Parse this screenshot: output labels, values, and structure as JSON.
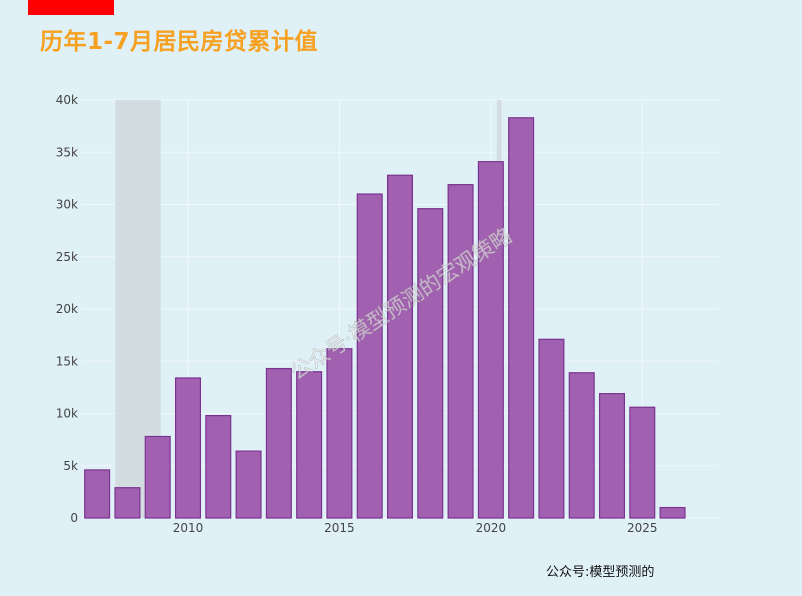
{
  "header": {
    "title": "历年1-7月居民房贷累计值"
  },
  "watermark": "公众号·模型预测的宏观策略",
  "footer": "公众号:模型预测的",
  "colors": {
    "bar_fill": "#a260b0",
    "bar_stroke": "#7a3390",
    "shade": "#d3dce0",
    "background": "#dff0f7",
    "title": "#f6a121",
    "brand_tab": "#ff0000"
  },
  "chart_data": {
    "type": "bar",
    "title": "",
    "xlabel": "",
    "ylabel": "",
    "x": [
      2007,
      2008,
      2009,
      2010,
      2011,
      2012,
      2013,
      2014,
      2015,
      2016,
      2017,
      2018,
      2019,
      2020,
      2021,
      2022,
      2023,
      2024,
      2025,
      2026
    ],
    "values": [
      4600,
      2900,
      7800,
      13400,
      9800,
      6400,
      14300,
      14000,
      16200,
      31000,
      32800,
      29600,
      31900,
      34100,
      38300,
      17100,
      13900,
      11900,
      10600,
      1000
    ],
    "xlim": [
      2006.5,
      2027.5
    ],
    "ylim": [
      0,
      40000
    ],
    "xticks": [
      2010,
      2015,
      2020,
      2025
    ],
    "xtick_labels": [
      "2010",
      "2015",
      "2020",
      "2025"
    ],
    "yticks": [
      0,
      5000,
      10000,
      15000,
      20000,
      25000,
      30000,
      35000,
      40000
    ],
    "ytick_labels": [
      "0",
      "5k",
      "10k",
      "15k",
      "20k",
      "25k",
      "30k",
      "35k",
      "40k"
    ],
    "shaded_ranges": [
      [
        2007.6,
        2009.1
      ],
      [
        2020.2,
        2020.35
      ]
    ],
    "grid": true,
    "legend": "none"
  }
}
